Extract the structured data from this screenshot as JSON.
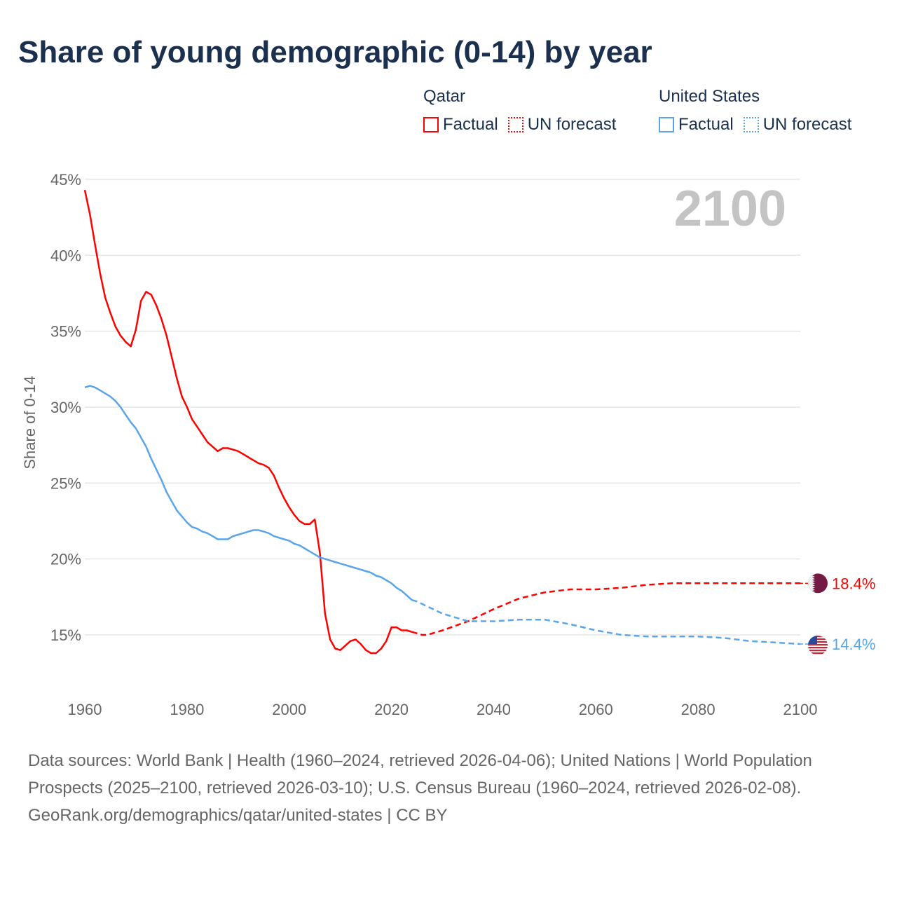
{
  "title": "Share of young demographic (0-14) by year",
  "legend": {
    "groups": [
      {
        "name": "Qatar",
        "color": "#ff0000",
        "factual": "Factual",
        "forecast": "UN forecast"
      },
      {
        "name": "United States",
        "color": "#5aa5ea",
        "factual": "Factual",
        "forecast": "UN forecast"
      }
    ]
  },
  "year_watermark": "2100",
  "footer": {
    "sources": "Data sources: World Bank | Health (1960–2024, retrieved 2026-04-06); United Nations | World Population Prospects (2025–2100, retrieved 2026-03-10); U.S. Census Bureau (1960–2024, retrieved 2026-02-08).",
    "credit": "GeoRank.org/demographics/qatar/united-states | CC BY"
  },
  "chart_data": {
    "type": "line",
    "title": "Share of young demographic (0-14) by year",
    "xlabel": "",
    "ylabel": "Share of 0-14",
    "xlim": [
      1960,
      2100
    ],
    "ylim": [
      12,
      45
    ],
    "x_ticks": [
      "1960",
      "1980",
      "2000",
      "2020",
      "2040",
      "2060",
      "2080",
      "2100"
    ],
    "x_tick_values": [
      1960,
      1980,
      2000,
      2020,
      2040,
      2060,
      2080,
      2100
    ],
    "y_ticks": [
      "15%",
      "20%",
      "25%",
      "30%",
      "35%",
      "40%",
      "45%"
    ],
    "y_tick_values": [
      15,
      20,
      25,
      30,
      35,
      40,
      45
    ],
    "grid": true,
    "legend_position": "top-right",
    "series": [
      {
        "name": "Qatar",
        "color": "#ff0000",
        "end_label": "18.4%",
        "factual": [
          [
            1960,
            44.3
          ],
          [
            1961,
            42.7
          ],
          [
            1962,
            40.7
          ],
          [
            1963,
            38.8
          ],
          [
            1964,
            37.2
          ],
          [
            1965,
            36.2
          ],
          [
            1966,
            35.3
          ],
          [
            1967,
            34.7
          ],
          [
            1968,
            34.3
          ],
          [
            1969,
            34.0
          ],
          [
            1970,
            35.1
          ],
          [
            1971,
            37.0
          ],
          [
            1972,
            37.6
          ],
          [
            1973,
            37.4
          ],
          [
            1974,
            36.7
          ],
          [
            1975,
            35.8
          ],
          [
            1976,
            34.7
          ],
          [
            1977,
            33.3
          ],
          [
            1978,
            31.9
          ],
          [
            1979,
            30.7
          ],
          [
            1980,
            30.0
          ],
          [
            1981,
            29.2
          ],
          [
            1982,
            28.7
          ],
          [
            1983,
            28.2
          ],
          [
            1984,
            27.7
          ],
          [
            1985,
            27.4
          ],
          [
            1986,
            27.1
          ],
          [
            1987,
            27.3
          ],
          [
            1988,
            27.3
          ],
          [
            1989,
            27.2
          ],
          [
            1990,
            27.1
          ],
          [
            1991,
            26.9
          ],
          [
            1992,
            26.7
          ],
          [
            1993,
            26.5
          ],
          [
            1994,
            26.3
          ],
          [
            1995,
            26.2
          ],
          [
            1996,
            26.0
          ],
          [
            1997,
            25.5
          ],
          [
            1998,
            24.7
          ],
          [
            1999,
            24.0
          ],
          [
            2000,
            23.4
          ],
          [
            2001,
            22.9
          ],
          [
            2002,
            22.5
          ],
          [
            2003,
            22.3
          ],
          [
            2004,
            22.3
          ],
          [
            2005,
            22.6
          ],
          [
            2006,
            20.4
          ],
          [
            2007,
            16.4
          ],
          [
            2008,
            14.7
          ],
          [
            2009,
            14.1
          ],
          [
            2010,
            14.0
          ],
          [
            2011,
            14.3
          ],
          [
            2012,
            14.6
          ],
          [
            2013,
            14.7
          ],
          [
            2014,
            14.4
          ],
          [
            2015,
            14.0
          ],
          [
            2016,
            13.8
          ],
          [
            2017,
            13.8
          ],
          [
            2018,
            14.1
          ],
          [
            2019,
            14.6
          ],
          [
            2020,
            15.5
          ],
          [
            2021,
            15.5
          ],
          [
            2022,
            15.3
          ],
          [
            2023,
            15.3
          ],
          [
            2024,
            15.2
          ]
        ],
        "forecast": [
          [
            2024,
            15.2
          ],
          [
            2025,
            15.1
          ],
          [
            2026,
            15.0
          ],
          [
            2027,
            15.0
          ],
          [
            2030,
            15.3
          ],
          [
            2035,
            15.9
          ],
          [
            2040,
            16.7
          ],
          [
            2045,
            17.4
          ],
          [
            2050,
            17.8
          ],
          [
            2055,
            18.0
          ],
          [
            2060,
            18.0
          ],
          [
            2065,
            18.1
          ],
          [
            2070,
            18.3
          ],
          [
            2075,
            18.4
          ],
          [
            2080,
            18.4
          ],
          [
            2090,
            18.4
          ],
          [
            2100,
            18.4
          ]
        ]
      },
      {
        "name": "United States",
        "color": "#5aa5ea",
        "end_label": "14.4%",
        "factual": [
          [
            1960,
            31.3
          ],
          [
            1961,
            31.4
          ],
          [
            1962,
            31.3
          ],
          [
            1963,
            31.1
          ],
          [
            1964,
            30.9
          ],
          [
            1965,
            30.7
          ],
          [
            1966,
            30.4
          ],
          [
            1967,
            30.0
          ],
          [
            1968,
            29.5
          ],
          [
            1969,
            29.0
          ],
          [
            1970,
            28.6
          ],
          [
            1971,
            28.0
          ],
          [
            1972,
            27.4
          ],
          [
            1973,
            26.6
          ],
          [
            1974,
            25.9
          ],
          [
            1975,
            25.2
          ],
          [
            1976,
            24.4
          ],
          [
            1977,
            23.8
          ],
          [
            1978,
            23.2
          ],
          [
            1979,
            22.8
          ],
          [
            1980,
            22.4
          ],
          [
            1981,
            22.1
          ],
          [
            1982,
            22.0
          ],
          [
            1983,
            21.8
          ],
          [
            1984,
            21.7
          ],
          [
            1985,
            21.5
          ],
          [
            1986,
            21.3
          ],
          [
            1987,
            21.3
          ],
          [
            1988,
            21.3
          ],
          [
            1989,
            21.5
          ],
          [
            1990,
            21.6
          ],
          [
            1991,
            21.7
          ],
          [
            1992,
            21.8
          ],
          [
            1993,
            21.9
          ],
          [
            1994,
            21.9
          ],
          [
            1995,
            21.8
          ],
          [
            1996,
            21.7
          ],
          [
            1997,
            21.5
          ],
          [
            1998,
            21.4
          ],
          [
            1999,
            21.3
          ],
          [
            2000,
            21.2
          ],
          [
            2001,
            21.0
          ],
          [
            2002,
            20.9
          ],
          [
            2003,
            20.7
          ],
          [
            2004,
            20.5
          ],
          [
            2005,
            20.3
          ],
          [
            2006,
            20.1
          ],
          [
            2007,
            20.0
          ],
          [
            2008,
            19.9
          ],
          [
            2009,
            19.8
          ],
          [
            2010,
            19.7
          ],
          [
            2011,
            19.6
          ],
          [
            2012,
            19.5
          ],
          [
            2013,
            19.4
          ],
          [
            2014,
            19.3
          ],
          [
            2015,
            19.2
          ],
          [
            2016,
            19.1
          ],
          [
            2017,
            18.9
          ],
          [
            2018,
            18.8
          ],
          [
            2019,
            18.6
          ],
          [
            2020,
            18.4
          ],
          [
            2021,
            18.1
          ],
          [
            2022,
            17.9
          ],
          [
            2023,
            17.6
          ],
          [
            2024,
            17.3
          ]
        ],
        "forecast": [
          [
            2024,
            17.3
          ],
          [
            2025,
            17.2
          ],
          [
            2030,
            16.4
          ],
          [
            2035,
            15.9
          ],
          [
            2040,
            15.9
          ],
          [
            2045,
            16.0
          ],
          [
            2050,
            16.0
          ],
          [
            2055,
            15.7
          ],
          [
            2060,
            15.3
          ],
          [
            2065,
            15.0
          ],
          [
            2070,
            14.9
          ],
          [
            2080,
            14.9
          ],
          [
            2085,
            14.8
          ],
          [
            2090,
            14.6
          ],
          [
            2095,
            14.5
          ],
          [
            2100,
            14.4
          ]
        ]
      }
    ]
  }
}
